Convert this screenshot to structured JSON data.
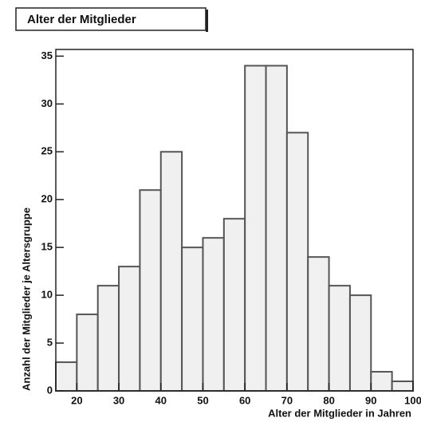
{
  "chart_data": {
    "type": "histogram",
    "title": "Alter der Mitglieder",
    "x_label": "Alter der Mitglieder in Jahren",
    "y_label": "Anzahl der Mitglieder je Altersgruppe",
    "bins": [
      15,
      20,
      25,
      30,
      35,
      40,
      45,
      50,
      55,
      60,
      65,
      70,
      75,
      80,
      85,
      90,
      95,
      100
    ],
    "values": [
      3,
      8,
      11,
      13,
      21,
      25,
      15,
      16,
      18,
      34,
      34,
      27,
      14,
      11,
      10,
      2,
      1
    ],
    "color": "#f0f0f0",
    "edge_color": "#555555",
    "xlim": [
      15,
      100
    ],
    "xticks": [
      20,
      30,
      40,
      50,
      60,
      70,
      80,
      90,
      100
    ],
    "ylim": [
      0,
      35.7
    ],
    "yticks": [
      0,
      5,
      10,
      15,
      20,
      25,
      30,
      35
    ]
  }
}
